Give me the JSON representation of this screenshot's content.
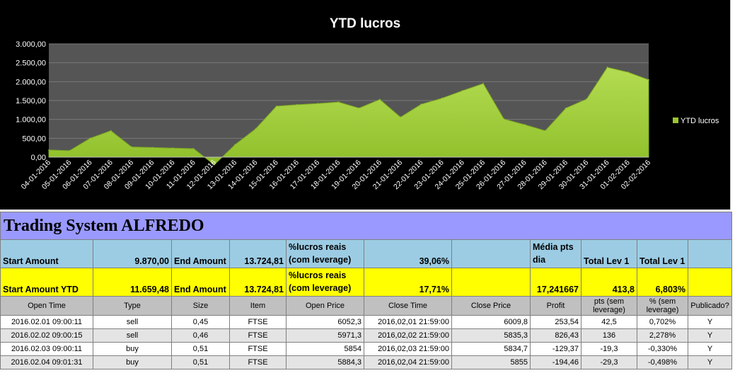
{
  "chart_data": {
    "type": "area",
    "title": "YTD lucros",
    "legend": "YTD lucros",
    "legend_position": "right",
    "color": "#9bc62e",
    "ylim": [
      0,
      3000
    ],
    "yticks": [
      "3.000,00",
      "2.500,00",
      "2.000,00",
      "1.500,00",
      "1.000,00",
      "500,00",
      "0,00"
    ],
    "grid": true,
    "categories": [
      "04-01-2016",
      "05-01-2016",
      "06-01-2016",
      "07-01-2016",
      "08-01-2016",
      "09-01-2016",
      "10-01-2016",
      "11-01-2016",
      "12-01-2016",
      "13-01-2016",
      "14-01-2016",
      "15-01-2016",
      "16-01-2016",
      "17-01-2016",
      "18-01-2016",
      "19-01-2016",
      "20-01-2016",
      "21-01-2016",
      "22-01-2016",
      "23-01-2016",
      "24-01-2016",
      "25-01-2016",
      "26-01-2016",
      "27-01-2016",
      "28-01-2016",
      "29-01-2016",
      "30-01-2016",
      "31-01-2016",
      "01-02-2016",
      "02-02-2016"
    ],
    "values": [
      190,
      170,
      500,
      700,
      270,
      255,
      240,
      225,
      -200,
      330,
      750,
      1350,
      1390,
      1420,
      1460,
      1300,
      1530,
      1060,
      1400,
      1560,
      1760,
      1950,
      1010,
      860,
      700,
      1300,
      1540,
      2380,
      2250,
      2050
    ]
  },
  "sheet": {
    "title": "Trading System ALFREDO",
    "row1": [
      "Start Amount",
      "9.870,00",
      "End Amount",
      "13.724,81",
      "%lucros reais (com leverage)",
      "39,06%",
      "",
      "Média pts dia",
      "Total Lev 1",
      "Total Lev 1",
      ""
    ],
    "row2": [
      "Start Amount YTD",
      "11.659,48",
      "End Amount",
      "13.724,81",
      "%lucros reais (com leverage)",
      "17,71%",
      "",
      "17,241667",
      "413,8",
      "6,803%",
      ""
    ],
    "headers": [
      "Open Time",
      "Type",
      "Size",
      "Item",
      "Open Price",
      "Close Time",
      "Close Price",
      "Profit",
      "pts (sem leverage)",
      "% (sem leverage)",
      "Publicado?"
    ],
    "rows": [
      [
        "2016.02.01 09:00:11",
        "sell",
        "0,45",
        "FTSE",
        "6052,3",
        "2016,02,01 21:59:00",
        "6009,8",
        "253,54",
        "42,5",
        "0,702%",
        "Y"
      ],
      [
        "2016.02.02 09:00:15",
        "sell",
        "0,46",
        "FTSE",
        "5971,3",
        "2016,02,02 21:59:00",
        "5835,3",
        "826,43",
        "136",
        "2,278%",
        "Y"
      ],
      [
        "2016.02.03 09:00:11",
        "buy",
        "0,51",
        "FTSE",
        "5854",
        "2016,02,03 21:59:00",
        "5834,7",
        "-129,37",
        "-19,3",
        "-0,330%",
        "Y"
      ],
      [
        "2016.02.04 09:01:31",
        "buy",
        "0,51",
        "FTSE",
        "5884,3",
        "2016,02,04 21:59:00",
        "5855",
        "-194,46",
        "-29,3",
        "-0,498%",
        "Y"
      ]
    ]
  }
}
